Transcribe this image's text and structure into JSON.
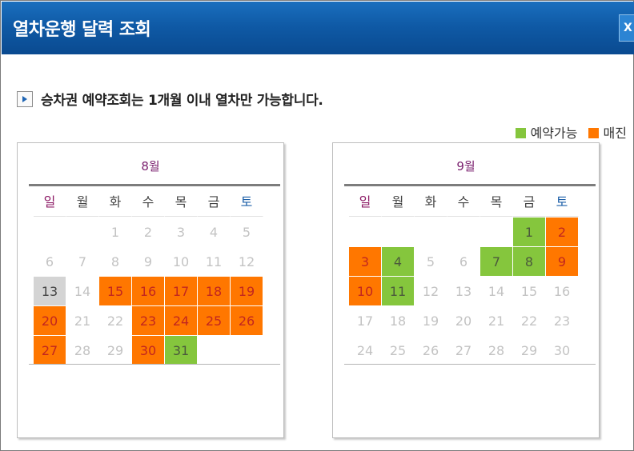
{
  "window": {
    "title": "열차운행 달력 조회",
    "close_label": "X"
  },
  "notice": {
    "text": "승차권 예약조회는 1개월 이내 열차만 가능합니다."
  },
  "legend": [
    {
      "label": "예약가능",
      "color": "#85c63d"
    },
    {
      "label": "매진",
      "color": "#ff7700"
    }
  ],
  "weekdays": [
    "일",
    "월",
    "화",
    "수",
    "목",
    "금",
    "토"
  ],
  "calendars": [
    {
      "month_label": "8월",
      "weeks": [
        [
          {
            "d": ""
          },
          {
            "d": ""
          },
          {
            "d": "1"
          },
          {
            "d": "2"
          },
          {
            "d": "3"
          },
          {
            "d": "4"
          },
          {
            "d": "5"
          }
        ],
        [
          {
            "d": "6"
          },
          {
            "d": "7"
          },
          {
            "d": "8"
          },
          {
            "d": "9"
          },
          {
            "d": "10"
          },
          {
            "d": "11"
          },
          {
            "d": "12"
          }
        ],
        [
          {
            "d": "13",
            "s": "today"
          },
          {
            "d": "14"
          },
          {
            "d": "15",
            "s": "sold"
          },
          {
            "d": "16",
            "s": "sold"
          },
          {
            "d": "17",
            "s": "sold"
          },
          {
            "d": "18",
            "s": "sold"
          },
          {
            "d": "19",
            "s": "sold"
          }
        ],
        [
          {
            "d": "20",
            "s": "sold"
          },
          {
            "d": "21"
          },
          {
            "d": "22"
          },
          {
            "d": "23",
            "s": "sold"
          },
          {
            "d": "24",
            "s": "sold"
          },
          {
            "d": "25",
            "s": "sold"
          },
          {
            "d": "26",
            "s": "sold"
          }
        ],
        [
          {
            "d": "27",
            "s": "sold"
          },
          {
            "d": "28"
          },
          {
            "d": "29"
          },
          {
            "d": "30",
            "s": "sold"
          },
          {
            "d": "31",
            "s": "avail"
          },
          {
            "d": ""
          },
          {
            "d": ""
          }
        ]
      ]
    },
    {
      "month_label": "9월",
      "weeks": [
        [
          {
            "d": ""
          },
          {
            "d": ""
          },
          {
            "d": ""
          },
          {
            "d": ""
          },
          {
            "d": ""
          },
          {
            "d": "1",
            "s": "avail"
          },
          {
            "d": "2",
            "s": "sold"
          }
        ],
        [
          {
            "d": "3",
            "s": "sold"
          },
          {
            "d": "4",
            "s": "avail"
          },
          {
            "d": "5"
          },
          {
            "d": "6"
          },
          {
            "d": "7",
            "s": "avail"
          },
          {
            "d": "8",
            "s": "avail"
          },
          {
            "d": "9",
            "s": "sold"
          }
        ],
        [
          {
            "d": "10",
            "s": "sold"
          },
          {
            "d": "11",
            "s": "avail"
          },
          {
            "d": "12"
          },
          {
            "d": "13"
          },
          {
            "d": "14"
          },
          {
            "d": "15"
          },
          {
            "d": "16"
          }
        ],
        [
          {
            "d": "17"
          },
          {
            "d": "18"
          },
          {
            "d": "19"
          },
          {
            "d": "20"
          },
          {
            "d": "21"
          },
          {
            "d": "22"
          },
          {
            "d": "23"
          }
        ],
        [
          {
            "d": "24"
          },
          {
            "d": "25"
          },
          {
            "d": "26"
          },
          {
            "d": "27"
          },
          {
            "d": "28"
          },
          {
            "d": "29"
          },
          {
            "d": "30"
          }
        ]
      ]
    }
  ]
}
